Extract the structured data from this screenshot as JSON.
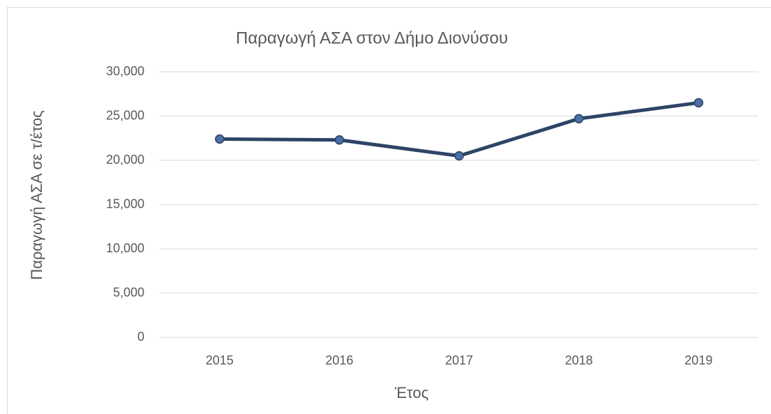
{
  "chart_data": {
    "type": "line",
    "title": "Παραγωγή ΑΣΑ στον Δήμο Διονύσου",
    "y_label": "Παραγωγή ΑΣΑ σε τ/έτος",
    "x_label": "Έτος",
    "categories": [
      "2015",
      "2016",
      "2017",
      "2018",
      "2019"
    ],
    "values": [
      22400,
      22300,
      20500,
      24700,
      26500
    ],
    "color": "#2d4466",
    "marker_color": "#4a6fa5",
    "ylim": [
      0,
      30000
    ],
    "yticks": [
      0,
      {
        "value": 5000,
        "label": "5,000"
      },
      {
        "value": 10000,
        "label": "10,000"
      },
      {
        "value": 15000,
        "label": "15,000"
      },
      {
        "value": 20000,
        "label": "20,000"
      },
      {
        "value": 25000,
        "label": "25,000"
      },
      {
        "value": 30000,
        "label": "30,000"
      }
    ],
    "grid": true
  }
}
